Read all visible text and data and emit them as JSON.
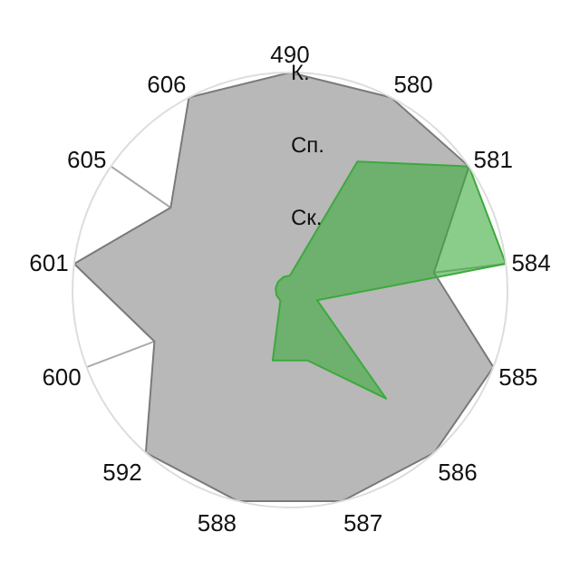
{
  "chart_data": {
    "type": "radar",
    "categories": [
      "490",
      "580",
      "581",
      "584",
      "585",
      "586",
      "587",
      "588",
      "592",
      "600",
      "601",
      "605",
      "606"
    ],
    "series": [
      {
        "color": "#b8b8b8",
        "values": [
          3,
          3,
          3,
          2,
          3,
          3,
          3,
          3,
          3,
          2,
          3,
          2,
          3
        ]
      },
      {
        "color": "#3caa3c",
        "values": [
          0.2,
          2,
          3,
          3,
          0.4,
          2,
          1,
          1,
          0.2,
          0.2,
          0.2,
          0.2,
          0.2
        ]
      }
    ],
    "ylim": [
      0,
      3
    ],
    "yticks": [
      {
        "value": 1,
        "label": "Ск."
      },
      {
        "value": 2,
        "label": "Сп."
      },
      {
        "value": 3,
        "label": "К."
      }
    ],
    "grid": true,
    "marker": "none"
  }
}
